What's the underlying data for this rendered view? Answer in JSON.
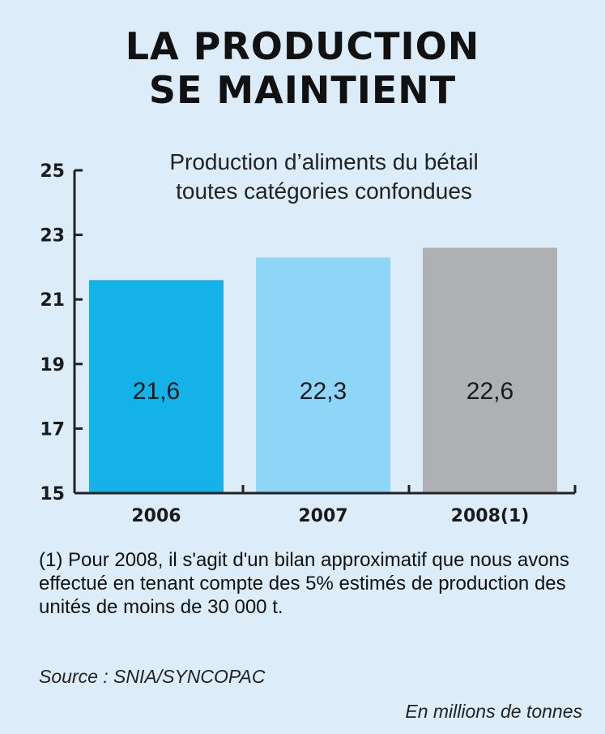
{
  "title_line1": "LA PRODUCTION",
  "title_line2": "SE MAINTIENT",
  "chart_data": {
    "type": "bar",
    "subtitle_line1": "Production d’aliments du bétail",
    "subtitle_line2": "toutes catégories confondues",
    "categories": [
      "2006",
      "2007",
      "2008(1)"
    ],
    "values": [
      21.6,
      22.3,
      22.6
    ],
    "value_labels": [
      "21,6",
      "22,3",
      "22,6"
    ],
    "bar_colors": [
      "#14b2e8",
      "#8ed6f8",
      "#aeb0b3"
    ],
    "ylim": [
      15,
      25
    ],
    "yticks": [
      15,
      17,
      19,
      21,
      23,
      25
    ],
    "grid": false
  },
  "footnote": "(1) Pour 2008, il s'agit d'un  bilan approximatif que nous avons effectué en tenant compte des 5% estimés de production des unités de moins de 30 000 t.",
  "source": "Source : SNIA/SYNCOPAC",
  "unit": "En millions de tonnes"
}
